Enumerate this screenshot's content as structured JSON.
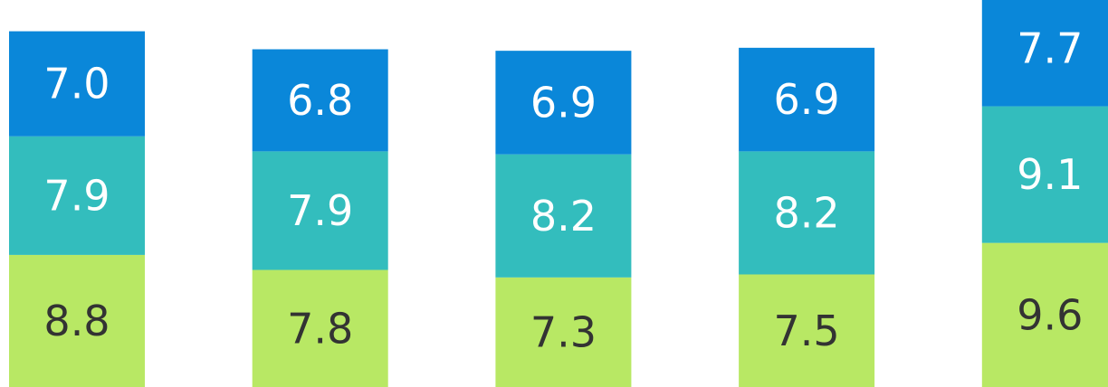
{
  "chart_data": {
    "type": "stacked-bar",
    "series": [
      {
        "color": "#b8e864",
        "label_color": "#333333",
        "values": [
          8.8,
          7.8,
          7.3,
          7.5,
          9.6
        ]
      },
      {
        "color": "#33bdbd",
        "label_color": "#ffffff",
        "values": [
          7.9,
          7.9,
          8.2,
          8.2,
          9.1
        ]
      },
      {
        "color": "#0a87d9",
        "label_color": "#ffffff",
        "values": [
          7.0,
          6.8,
          6.9,
          6.9,
          7.7
        ]
      }
    ],
    "value_labels": [
      [
        "8.8",
        "7.8",
        "7.3",
        "7.5",
        "9.6"
      ],
      [
        "7.9",
        "7.9",
        "8.2",
        "8.2",
        "9.1"
      ],
      [
        "7.0",
        "6.8",
        "6.9",
        "6.9",
        "7.7"
      ]
    ]
  }
}
